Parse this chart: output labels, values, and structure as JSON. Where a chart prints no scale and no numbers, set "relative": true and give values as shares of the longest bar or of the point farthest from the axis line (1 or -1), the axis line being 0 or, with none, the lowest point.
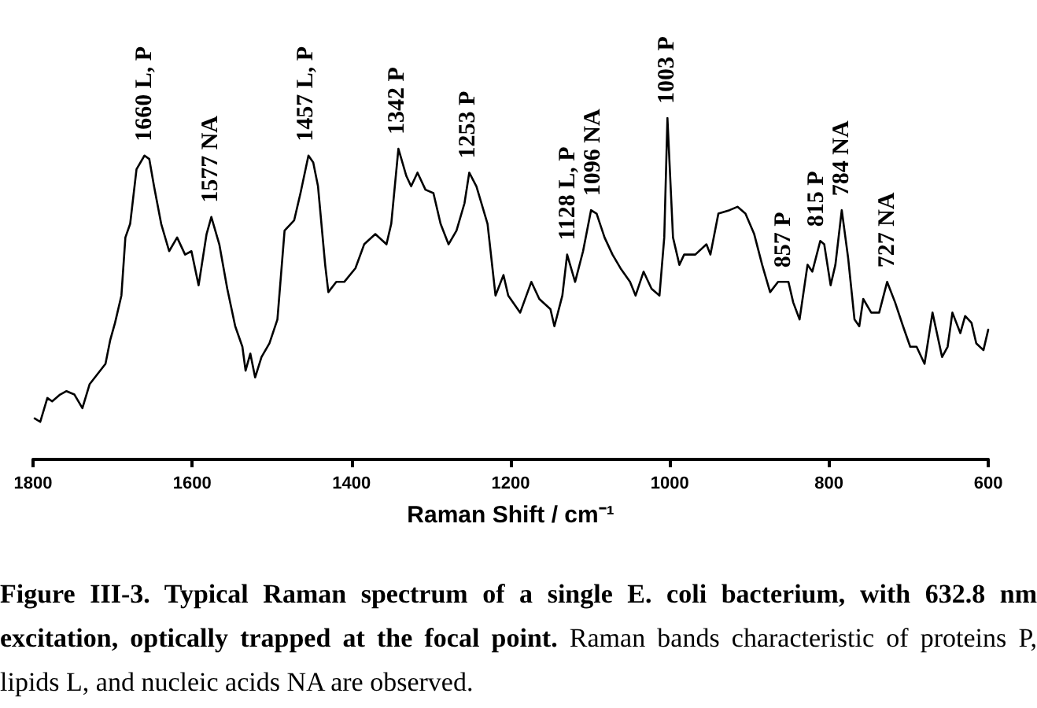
{
  "chart_data": {
    "type": "line",
    "relative": true,
    "color": "#000000",
    "xlabel": "Raman Shift / cm⁻¹",
    "xlim": [
      1800,
      600
    ],
    "xticks": [
      1800,
      1600,
      1400,
      1200,
      1000,
      800,
      600
    ],
    "x": [
      1798,
      1791,
      1782,
      1776,
      1766,
      1758,
      1748,
      1738,
      1729,
      1719,
      1709,
      1703,
      1697,
      1689,
      1684,
      1678,
      1670,
      1660,
      1654,
      1648,
      1639,
      1629,
      1619,
      1609,
      1601,
      1592,
      1582,
      1576,
      1566,
      1556,
      1546,
      1537,
      1533,
      1527,
      1521,
      1513,
      1503,
      1493,
      1484,
      1472,
      1464,
      1454,
      1448,
      1442,
      1433,
      1429,
      1419,
      1409,
      1395,
      1384,
      1370,
      1356,
      1350,
      1341,
      1331,
      1325,
      1317,
      1307,
      1297,
      1288,
      1278,
      1268,
      1258,
      1252,
      1243,
      1229,
      1219,
      1209,
      1203,
      1188,
      1174,
      1164,
      1150,
      1145,
      1135,
      1129,
      1119,
      1109,
      1099,
      1092,
      1082,
      1072,
      1062,
      1050,
      1043,
      1033,
      1023,
      1013,
      1007,
      1003,
      996,
      988,
      982,
      968,
      954,
      949,
      939,
      925,
      915,
      905,
      894,
      884,
      874,
      864,
      851,
      845,
      837,
      827,
      821,
      811,
      806,
      798,
      792,
      784,
      776,
      768,
      762,
      757,
      747,
      737,
      727,
      717,
      707,
      698,
      690,
      680,
      670,
      658,
      651,
      645,
      635,
      629,
      621,
      615,
      606,
      600
    ],
    "values": [
      0.12,
      0.11,
      0.18,
      0.17,
      0.19,
      0.2,
      0.19,
      0.15,
      0.22,
      0.25,
      0.28,
      0.35,
      0.4,
      0.48,
      0.65,
      0.69,
      0.85,
      0.89,
      0.88,
      0.8,
      0.69,
      0.61,
      0.65,
      0.6,
      0.61,
      0.51,
      0.66,
      0.71,
      0.63,
      0.5,
      0.39,
      0.33,
      0.26,
      0.31,
      0.24,
      0.3,
      0.34,
      0.41,
      0.67,
      0.7,
      0.78,
      0.89,
      0.87,
      0.8,
      0.57,
      0.49,
      0.52,
      0.52,
      0.56,
      0.63,
      0.66,
      0.63,
      0.69,
      0.91,
      0.83,
      0.8,
      0.84,
      0.79,
      0.78,
      0.69,
      0.63,
      0.67,
      0.75,
      0.84,
      0.8,
      0.69,
      0.48,
      0.54,
      0.48,
      0.43,
      0.52,
      0.47,
      0.44,
      0.39,
      0.48,
      0.6,
      0.52,
      0.61,
      0.73,
      0.72,
      0.65,
      0.6,
      0.56,
      0.52,
      0.48,
      0.55,
      0.5,
      0.48,
      0.65,
      1,
      0.65,
      0.57,
      0.6,
      0.6,
      0.63,
      0.6,
      0.72,
      0.73,
      0.74,
      0.72,
      0.66,
      0.57,
      0.49,
      0.52,
      0.52,
      0.46,
      0.41,
      0.57,
      0.55,
      0.64,
      0.63,
      0.51,
      0.57,
      0.73,
      0.59,
      0.41,
      0.39,
      0.47,
      0.43,
      0.43,
      0.52,
      0.46,
      0.39,
      0.33,
      0.33,
      0.28,
      0.43,
      0.3,
      0.33,
      0.43,
      0.37,
      0.42,
      0.4,
      0.34,
      0.32,
      0.38
    ],
    "annotations": [
      {
        "text": "1660 L, P",
        "x": 1660,
        "y": 0.89
      },
      {
        "text": "1577 NA",
        "x": 1577,
        "y": 0.71
      },
      {
        "text": "1457 L, P",
        "x": 1457,
        "y": 0.89
      },
      {
        "text": "1342 P",
        "x": 1342,
        "y": 0.91
      },
      {
        "text": "1253 P",
        "x": 1253,
        "y": 0.84
      },
      {
        "text": "1128 L, P",
        "x": 1128,
        "y": 0.6
      },
      {
        "text": "1096 NA",
        "x": 1096,
        "y": 0.73
      },
      {
        "text": "1003 P",
        "x": 1003,
        "y": 1
      },
      {
        "text": "857 P",
        "x": 857,
        "y": 0.52
      },
      {
        "text": "815 P",
        "x": 815,
        "y": 0.64
      },
      {
        "text": "784 NA",
        "x": 784,
        "y": 0.73
      },
      {
        "text": "727 NA",
        "x": 727,
        "y": 0.52
      },
      "Figure III-3. Typical Raman spectrum of a single E. coli bacterium, with 632.8 nm",
      "excitation, optically trapped at the focal point.",
      "Raman bands characteristic of proteins P,",
      "lipids L, and nucleic acids NA are observed."
    ]
  }
}
